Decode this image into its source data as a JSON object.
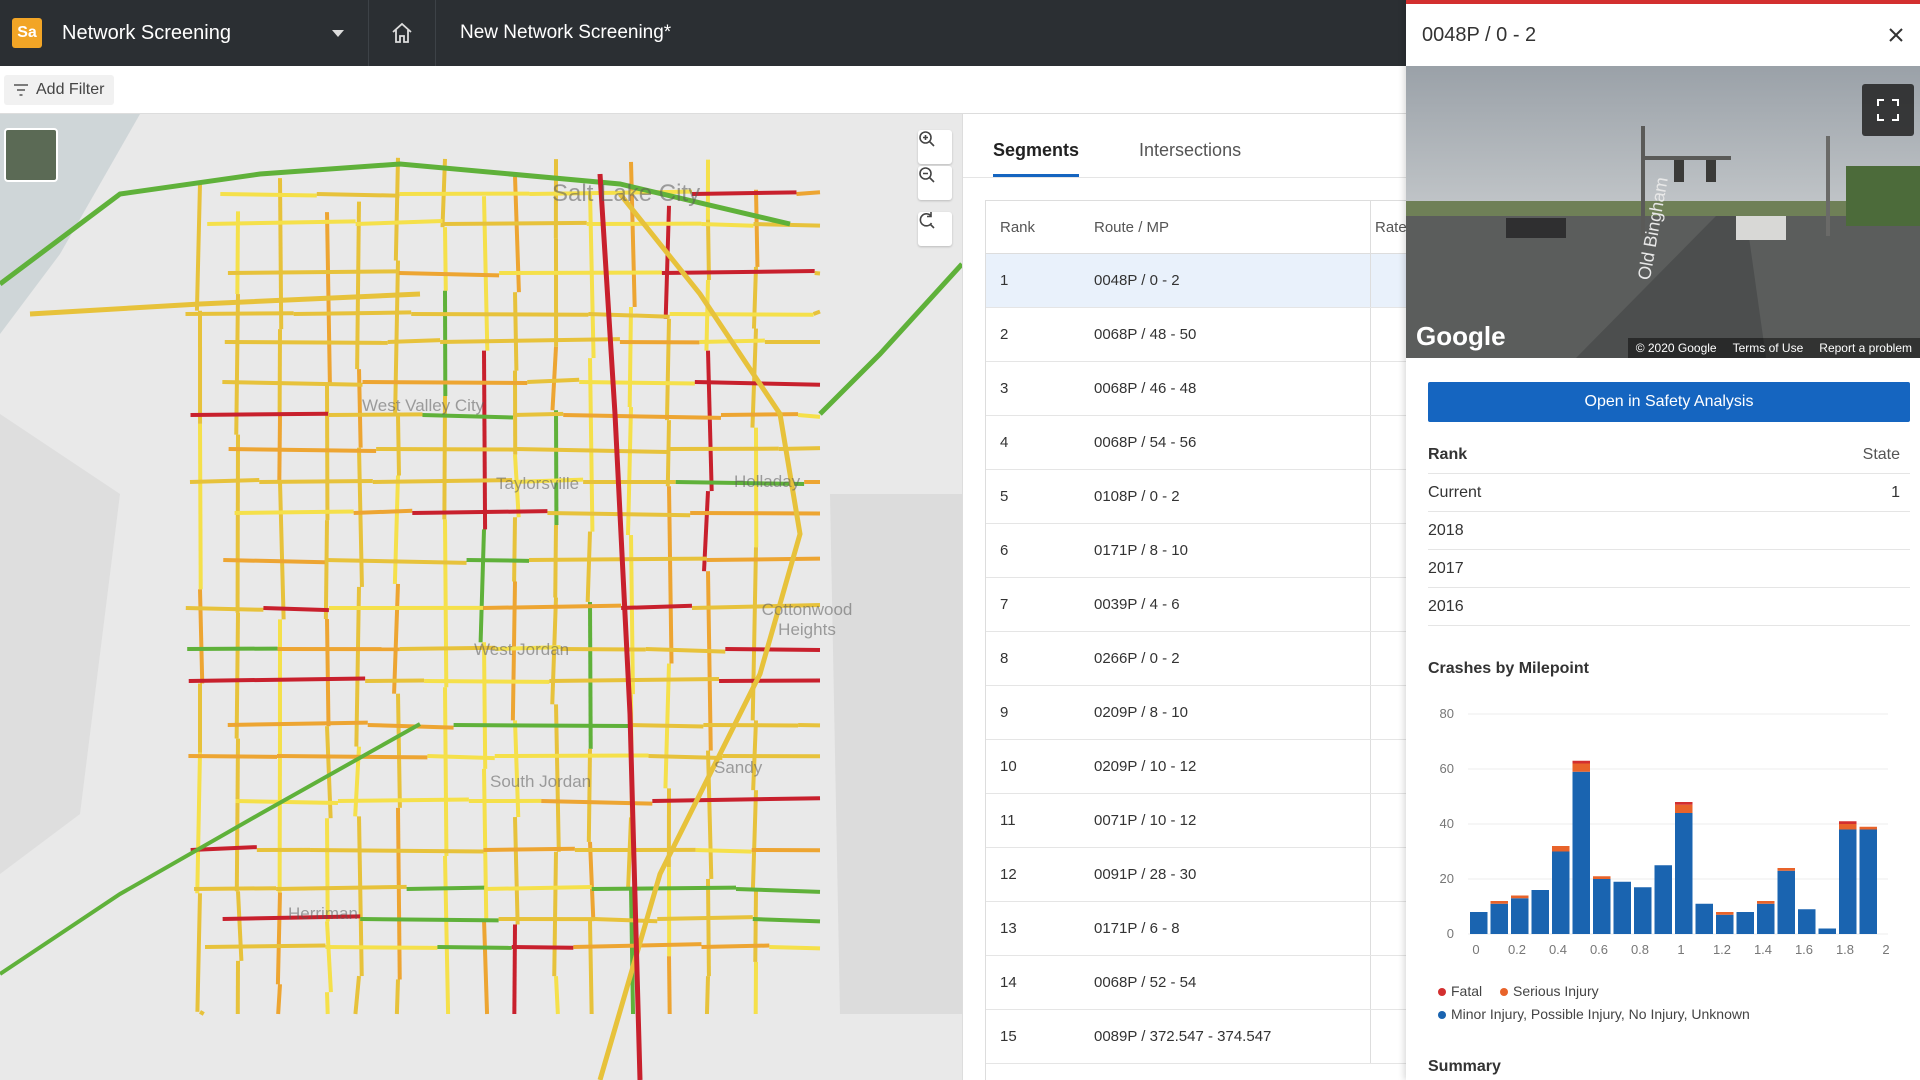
{
  "app": {
    "logo_text": "Sa",
    "title": "Network Screening",
    "document_title": "New Network Screening*"
  },
  "filter": {
    "add_filter_label": "Add Filter"
  },
  "map": {
    "labels": [
      "Salt Lake City",
      "West Valley City",
      "Holladay",
      "Taylorsville",
      "Cottonwood Heights",
      "West Jordan",
      "South Jordan",
      "Sandy",
      "Herriman"
    ]
  },
  "tabs": [
    {
      "label": "Segments",
      "active": true
    },
    {
      "label": "Intersections",
      "active": false
    }
  ],
  "table": {
    "headers": {
      "rank": "Rank",
      "route": "Route / MP",
      "rate": "Rate"
    },
    "rows": [
      {
        "rank": "1",
        "route": "0048P / 0 - 2"
      },
      {
        "rank": "2",
        "route": "0068P / 48 - 50"
      },
      {
        "rank": "3",
        "route": "0068P / 46 - 48"
      },
      {
        "rank": "4",
        "route": "0068P / 54 - 56"
      },
      {
        "rank": "5",
        "route": "0108P / 0 - 2"
      },
      {
        "rank": "6",
        "route": "0171P / 8 - 10"
      },
      {
        "rank": "7",
        "route": "0039P / 4 - 6"
      },
      {
        "rank": "8",
        "route": "0266P / 0 - 2"
      },
      {
        "rank": "9",
        "route": "0209P / 8 - 10"
      },
      {
        "rank": "10",
        "route": "0209P / 10 - 12"
      },
      {
        "rank": "11",
        "route": "0071P / 10 - 12"
      },
      {
        "rank": "12",
        "route": "0091P / 28 - 30"
      },
      {
        "rank": "13",
        "route": "0171P / 6 - 8"
      },
      {
        "rank": "14",
        "route": "0068P / 52 - 54"
      },
      {
        "rank": "15",
        "route": "0089P / 372.547 - 374.547"
      }
    ]
  },
  "detail": {
    "title": "0048P / 0 - 2",
    "streetview": {
      "brand": "Google",
      "road_text": "Old Bingham",
      "footer": [
        "© 2020 Google",
        "Terms of Use",
        "Report a problem"
      ]
    },
    "open_button": "Open in Safety Analysis",
    "rank_table": {
      "head": {
        "label": "Rank",
        "state": "State"
      },
      "rows": [
        {
          "label": "Current",
          "state": "1"
        },
        {
          "label": "2018",
          "state": ""
        },
        {
          "label": "2017",
          "state": ""
        },
        {
          "label": "2016",
          "state": ""
        }
      ]
    },
    "chart_title": "Crashes by Milepoint",
    "legend": [
      "Fatal",
      "Serious Injury",
      "Minor Injury, Possible Injury, No Injury, Unknown"
    ],
    "summary": "Summary"
  },
  "colors": {
    "accent": "#1565c0",
    "fatal": "#d32f2f",
    "serious": "#e8632a",
    "minor": "#1a64b0",
    "topbar": "#2b2f33",
    "logo": "#f2a526"
  },
  "chart_data": {
    "type": "bar",
    "stacked": true,
    "title": "Crashes by Milepoint",
    "xlim": [
      0,
      2
    ],
    "ylim": [
      0,
      80
    ],
    "xticks": [
      "0",
      "0.2",
      "0.4",
      "0.6",
      "0.8",
      "1",
      "1.2",
      "1.4",
      "1.6",
      "1.8",
      "2"
    ],
    "yticks": [
      "0",
      "20",
      "40",
      "60",
      "80"
    ],
    "x": [
      0.0,
      0.1,
      0.2,
      0.3,
      0.4,
      0.5,
      0.6,
      0.7,
      0.8,
      0.9,
      1.0,
      1.1,
      1.2,
      1.3,
      1.4,
      1.5,
      1.6,
      1.7,
      1.8,
      1.9
    ],
    "series": [
      {
        "name": "Minor Injury, Possible Injury, No Injury, Unknown",
        "values": [
          8,
          11,
          13,
          16,
          30,
          59,
          20,
          19,
          17,
          25,
          44,
          11,
          7,
          8,
          11,
          23,
          9,
          2,
          38,
          38
        ]
      },
      {
        "name": "Serious Injury",
        "values": [
          0,
          1,
          1,
          0,
          2,
          3,
          1,
          0,
          0,
          0,
          3,
          0,
          1,
          0,
          1,
          1,
          0,
          0,
          2,
          1
        ]
      },
      {
        "name": "Fatal",
        "values": [
          0,
          0,
          0,
          0,
          0,
          1,
          0,
          0,
          0,
          0,
          1,
          0,
          0,
          0,
          0,
          0,
          0,
          0,
          1,
          0
        ]
      }
    ]
  }
}
